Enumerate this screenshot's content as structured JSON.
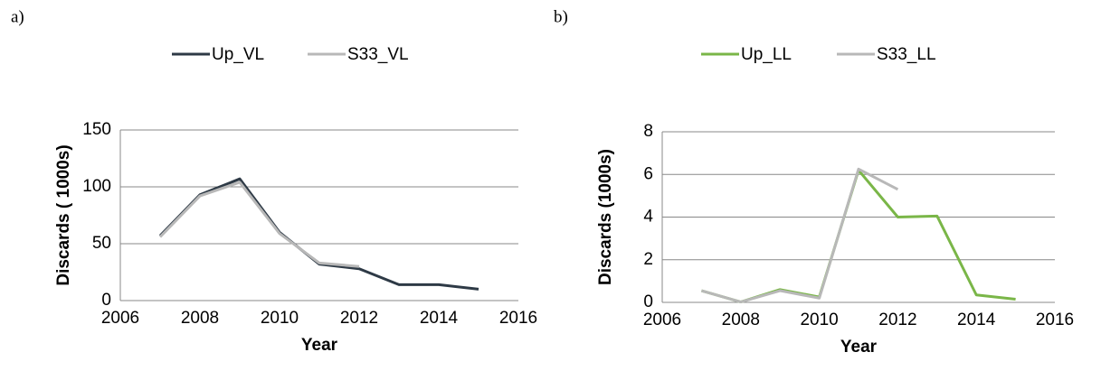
{
  "chart_data": [
    {
      "type": "line",
      "label": "a)",
      "xlabel": "Year",
      "ylabel": "Discards ( 1000s)",
      "x": [
        2007,
        2008,
        2009,
        2010,
        2011,
        2012,
        2013,
        2014,
        2015
      ],
      "series": [
        {
          "name": "Up_VL",
          "color": "#2e3a46",
          "values": [
            57,
            93,
            107,
            60,
            32,
            28,
            14,
            14,
            10
          ]
        },
        {
          "name": "S33_VL",
          "color": "#b8b8b8",
          "values": [
            56,
            92,
            104,
            59,
            33,
            30,
            null,
            null,
            null
          ]
        }
      ],
      "xlim": [
        2006,
        2016
      ],
      "xticks": [
        2006,
        2008,
        2010,
        2012,
        2014,
        2016
      ],
      "ylim": [
        0,
        150
      ],
      "yticks": [
        0,
        50,
        100,
        150
      ],
      "grid": true,
      "legend": "top"
    },
    {
      "type": "line",
      "label": "b)",
      "xlabel": "Year",
      "ylabel": "Discards (1000s)",
      "x": [
        2007,
        2008,
        2009,
        2010,
        2011,
        2012,
        2013,
        2014,
        2015
      ],
      "series": [
        {
          "name": "Up_LL",
          "color": "#7ab648",
          "values": [
            0.55,
            0.02,
            0.6,
            0.25,
            6.2,
            4.0,
            4.05,
            0.35,
            0.15
          ]
        },
        {
          "name": "S33_LL",
          "color": "#b8b8b8",
          "values": [
            0.55,
            0.02,
            0.55,
            0.2,
            6.25,
            5.3,
            null,
            null,
            null
          ]
        }
      ],
      "xlim": [
        2006,
        2016
      ],
      "xticks": [
        2006,
        2008,
        2010,
        2012,
        2014,
        2016
      ],
      "ylim": [
        0,
        8
      ],
      "yticks": [
        0,
        2,
        4,
        6,
        8
      ],
      "grid": true,
      "legend": "top"
    }
  ]
}
